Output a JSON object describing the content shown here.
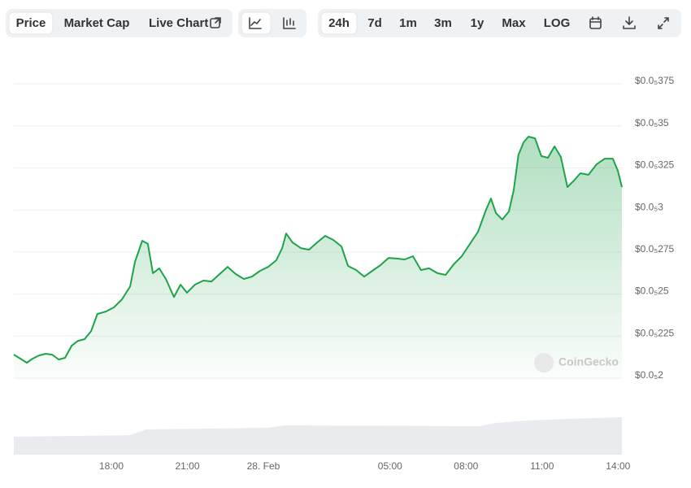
{
  "toolbar": {
    "views": [
      "Price",
      "Market Cap",
      "Live Chart"
    ],
    "ranges": [
      "24h",
      "7d",
      "1m",
      "3m",
      "1y",
      "Max",
      "LOG"
    ]
  },
  "watermark": "CoinGecko",
  "chart_data": {
    "type": "area",
    "x": [
      -9.85,
      -9.59,
      -9.34,
      -9.11,
      -8.86,
      -8.6,
      -8.34,
      -8.08,
      -7.83,
      -7.57,
      -7.32,
      -7.06,
      -6.8,
      -6.55,
      -6.22,
      -5.9,
      -5.58,
      -5.26,
      -5.07,
      -4.78,
      -4.56,
      -4.36,
      -4.11,
      -3.85,
      -3.53,
      -3.27,
      -3.02,
      -2.7,
      -2.37,
      -2.05,
      -1.73,
      -1.41,
      -1.09,
      -0.77,
      -0.45,
      -0.13,
      0.19,
      0.51,
      0.74,
      0.9,
      1.15,
      1.48,
      1.8,
      2.12,
      2.44,
      2.76,
      3.08,
      3.34,
      3.66,
      3.98,
      4.3,
      4.62,
      4.94,
      5.26,
      5.58,
      5.9,
      6.22,
      6.54,
      6.87,
      7.19,
      7.51,
      7.83,
      8.15,
      8.47,
      8.79,
      8.98,
      9.18,
      9.43,
      9.69,
      9.88,
      10.07,
      10.27,
      10.46,
      10.72,
      10.97,
      11.23,
      11.49,
      11.74,
      12.0,
      12.26,
      12.51,
      12.83,
      13.15,
      13.47,
      13.79,
      13.99,
      14.15
    ],
    "series": [
      {
        "color": "#1fa34a",
        "values": [
          2.14e-06,
          2.116e-06,
          2.092e-06,
          2.116e-06,
          2.135e-06,
          2.145e-06,
          2.14e-06,
          2.111e-06,
          2.121e-06,
          2.193e-06,
          2.222e-06,
          2.232e-06,
          2.28e-06,
          2.382e-06,
          2.396e-06,
          2.421e-06,
          2.469e-06,
          2.546e-06,
          2.691e-06,
          2.817e-06,
          2.798e-06,
          2.624e-06,
          2.653e-06,
          2.59e-06,
          2.483e-06,
          2.556e-06,
          2.508e-06,
          2.556e-06,
          2.58e-06,
          2.575e-06,
          2.619e-06,
          2.662e-06,
          2.619e-06,
          2.59e-06,
          2.604e-06,
          2.638e-06,
          2.662e-06,
          2.701e-06,
          2.773e-06,
          2.86e-06,
          2.807e-06,
          2.773e-06,
          2.764e-06,
          2.807e-06,
          2.846e-06,
          2.822e-06,
          2.783e-06,
          2.667e-06,
          2.643e-06,
          2.604e-06,
          2.638e-06,
          2.672e-06,
          2.715e-06,
          2.711e-06,
          2.706e-06,
          2.725e-06,
          2.643e-06,
          2.653e-06,
          2.624e-06,
          2.614e-06,
          2.677e-06,
          2.725e-06,
          2.798e-06,
          2.87e-06,
          3.001e-06,
          3.068e-06,
          2.981e-06,
          2.943e-06,
          2.991e-06,
          3.117e-06,
          3.329e-06,
          3.402e-06,
          3.436e-06,
          3.426e-06,
          3.32e-06,
          3.31e-06,
          3.378e-06,
          3.315e-06,
          3.136e-06,
          3.175e-06,
          3.218e-06,
          3.209e-06,
          3.271e-06,
          3.305e-06,
          3.305e-06,
          3.233e-06,
          3.136e-06
        ]
      }
    ],
    "xlim": [
      -9.85,
      14.15
    ],
    "xticks": [
      {
        "value": -6,
        "label": "18:00"
      },
      {
        "value": -3,
        "label": "21:00"
      },
      {
        "value": 0,
        "label": "28. Feb"
      },
      {
        "value": 5,
        "label": "05:00"
      },
      {
        "value": 8,
        "label": "08:00"
      },
      {
        "value": 11,
        "label": "11:00"
      },
      {
        "value": 14,
        "label": "14:00"
      }
    ],
    "ylim": [
      2e-06,
      3.75e-06
    ],
    "yticks": [
      {
        "value": 2e-06,
        "label": "$0.0₅2"
      },
      {
        "value": 2.25e-06,
        "label": "$0.0₅225"
      },
      {
        "value": 2.5e-06,
        "label": "$0.0₅25"
      },
      {
        "value": 2.75e-06,
        "label": "$0.0₅275"
      },
      {
        "value": 3e-06,
        "label": "$0.0₅3"
      },
      {
        "value": 3.25e-06,
        "label": "$0.0₅325"
      },
      {
        "value": 3.5e-06,
        "label": "$0.0₅35"
      },
      {
        "value": 3.75e-06,
        "label": "$0.0₅375"
      }
    ],
    "grid": true
  }
}
